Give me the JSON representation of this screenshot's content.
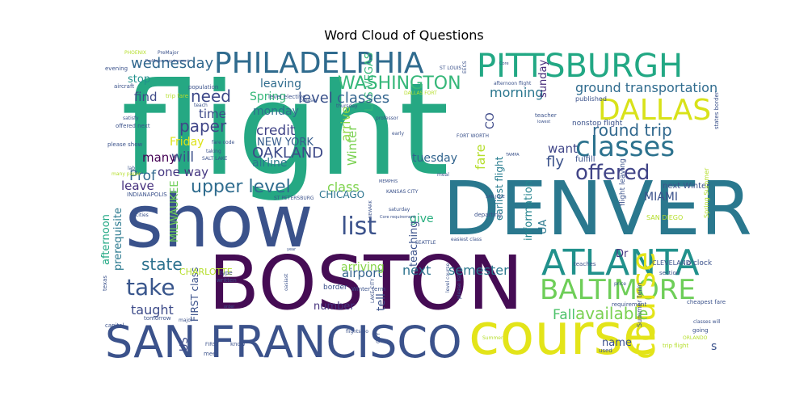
{
  "title": "Word Cloud of Questions",
  "words": [
    {
      "text": "flight",
      "color": "#25a883"
    },
    {
      "text": "BOSTON",
      "color": "#450c54"
    },
    {
      "text": "DENVER",
      "color": "#2a788e"
    },
    {
      "text": "show",
      "color": "#3a528b"
    },
    {
      "text": "course",
      "color": "#e3e419"
    },
    {
      "text": "SAN FRANCISCO",
      "color": "#3b528b"
    },
    {
      "text": "PITTSBURGH",
      "color": "#22a884"
    },
    {
      "text": "PHILADELPHIA",
      "color": "#2f6b8e"
    },
    {
      "text": "ATLANTA",
      "color": "#21918c"
    },
    {
      "text": "BALTIMORE",
      "color": "#6ece58"
    },
    {
      "text": "DALLAS",
      "color": "#d8e219"
    },
    {
      "text": "classes",
      "color": "#2c728e"
    },
    {
      "text": "offered",
      "color": "#414487"
    },
    {
      "text": "WASHINGTON",
      "color": "#35b779"
    },
    {
      "text": "take",
      "color": "#39568c"
    },
    {
      "text": "list",
      "color": "#3b528b"
    },
    {
      "text": "upper level",
      "color": "#2f6c8e"
    },
    {
      "text": "course",
      "color": "#e3e419"
    },
    {
      "text": "round trip",
      "color": "#31688e"
    },
    {
      "text": "paper",
      "color": "#404688"
    },
    {
      "text": "need",
      "color": "#3e4989"
    },
    {
      "text": "available",
      "color": "#7ad151"
    },
    {
      "text": "state",
      "color": "#2c718e"
    },
    {
      "text": "OAKLAND",
      "color": "#3e4a89"
    },
    {
      "text": "credit",
      "color": "#404387"
    },
    {
      "text": "wednesday",
      "color": "#31688e"
    },
    {
      "text": "ground transportation",
      "color": "#2f6b8e"
    },
    {
      "text": "morning",
      "color": "#2a768e"
    },
    {
      "text": "semester",
      "color": "#2a788e"
    },
    {
      "text": "taught",
      "color": "#3e4c8a"
    },
    {
      "text": "airport",
      "color": "#33638d"
    },
    {
      "text": "fly",
      "color": "#3b528b"
    },
    {
      "text": "MIAMI",
      "color": "#3b528b"
    },
    {
      "text": "Prof",
      "color": "#31688e"
    },
    {
      "text": "will",
      "color": "#3c4f8a"
    },
    {
      "text": "class",
      "color": "#7fd34e"
    },
    {
      "text": "one way",
      "color": "#453781"
    },
    {
      "text": "next",
      "color": "#2c728e"
    },
    {
      "text": "leave",
      "color": "#46307e"
    },
    {
      "text": "Fall",
      "color": "#4ec36b"
    },
    {
      "text": "CHICAGO",
      "color": "#2b748e"
    },
    {
      "text": "arriving",
      "color": "#86d549"
    },
    {
      "text": "tuesday",
      "color": "#32648e"
    },
    {
      "text": "NEW YORK",
      "color": "#365c8d"
    },
    {
      "text": "LAS VEGAS",
      "color": "#35b779"
    },
    {
      "text": "level",
      "color": "#3b528b"
    },
    {
      "text": "classes",
      "color": "#32648e"
    },
    {
      "text": "time",
      "color": "#3e4a89"
    },
    {
      "text": "monday",
      "color": "#2e6e8e"
    },
    {
      "text": "many",
      "color": "#440154"
    },
    {
      "text": "Spring",
      "color": "#35b779"
    },
    {
      "text": "leaving",
      "color": "#2f6c8e"
    },
    {
      "text": "airline",
      "color": "#2a788e"
    },
    {
      "text": "Friday",
      "color": "#dde318"
    },
    {
      "text": "find",
      "color": "#3e4a89"
    },
    {
      "text": "stop",
      "color": "#21918c"
    },
    {
      "text": "want",
      "color": "#404688"
    },
    {
      "text": "give",
      "color": "#29af7f"
    },
    {
      "text": "number",
      "color": "#46337e"
    },
    {
      "text": "name",
      "color": "#3c508b"
    },
    {
      "text": "teaching",
      "color": "#3b528b"
    },
    {
      "text": "tell",
      "color": "#3b528b"
    },
    {
      "text": "arrive",
      "color": "#8fd744"
    },
    {
      "text": "Winter",
      "color": "#7ad151"
    },
    {
      "text": "earliest flight",
      "color": "#287c8e"
    },
    {
      "text": "information",
      "color": "#25848e"
    },
    {
      "text": "fare",
      "color": "#b5de2b"
    },
    {
      "text": "sunday",
      "color": "#472c7a"
    },
    {
      "text": "CO",
      "color": "#3e4a89"
    },
    {
      "text": "prerequisite",
      "color": "#2a788e"
    },
    {
      "text": "afternoon",
      "color": "#22a884"
    },
    {
      "text": "MILWAUKEE",
      "color": "#6ece58"
    },
    {
      "text": "FIRST class",
      "color": "#3b528b"
    },
    {
      "text": "US",
      "color": "#3e4c8a"
    },
    {
      "text": "Dr",
      "color": "#453882"
    },
    {
      "text": "UA",
      "color": "#2a788e"
    },
    {
      "text": "s",
      "color": "#3b528b"
    },
    {
      "text": "CHARLOTTE",
      "color": "#b5de2b"
    },
    {
      "text": "fulfill",
      "color": "#3b528b"
    },
    {
      "text": "published",
      "color": "#3b528b"
    },
    {
      "text": "nonstop flight",
      "color": "#3b528b"
    },
    {
      "text": "next Winter",
      "color": "#3b528b"
    },
    {
      "text": "teacher",
      "color": "#3b528b"
    },
    {
      "text": "SAN DIEGO",
      "color": "#b5de2b"
    },
    {
      "text": "flight leaving",
      "color": "#3b528b"
    },
    {
      "text": "CLEVELAND",
      "color": "#3b528b"
    },
    {
      "text": "o'clock",
      "color": "#3b528b"
    },
    {
      "text": "section",
      "color": "#3b528b"
    },
    {
      "text": "teaches",
      "color": "#3b528b"
    },
    {
      "text": "Summer term",
      "color": "#3b528b"
    },
    {
      "text": "states border",
      "color": "#3b528b"
    },
    {
      "text": "Spring Summer",
      "color": "#b5de2b"
    },
    {
      "text": "classes will",
      "color": "#3b528b"
    },
    {
      "text": "going",
      "color": "#3b528b"
    },
    {
      "text": "cheapest fare",
      "color": "#3b528b"
    },
    {
      "text": "trip flight",
      "color": "#b5de2b"
    },
    {
      "text": "used",
      "color": "#3b528b"
    },
    {
      "text": "requirement",
      "color": "#3b528b"
    },
    {
      "text": "price",
      "color": "#3b528b"
    },
    {
      "text": "PHOENIX",
      "color": "#b5de2b"
    },
    {
      "text": "PreMajor",
      "color": "#3b528b"
    },
    {
      "text": "PreMajor requirement",
      "color": "#3b528b"
    },
    {
      "text": "evening",
      "color": "#3b528b"
    },
    {
      "text": "aircraft",
      "color": "#3b528b"
    },
    {
      "text": "trip fare",
      "color": "#b5de2b"
    },
    {
      "text": "population",
      "color": "#3b528b"
    },
    {
      "text": "teach",
      "color": "#3b528b"
    },
    {
      "text": "satisfy",
      "color": "#3b528b"
    },
    {
      "text": "offered next",
      "color": "#3b528b"
    },
    {
      "text": "please show",
      "color": "#3b528b"
    },
    {
      "text": "fare code",
      "color": "#3b528b"
    },
    {
      "text": "taking",
      "color": "#3b528b"
    },
    {
      "text": "SALT LAKE",
      "color": "#3b528b"
    },
    {
      "text": "lab",
      "color": "#3b528b"
    },
    {
      "text": "many paper",
      "color": "#b5de2b"
    },
    {
      "text": "INDIANAPOLIS",
      "color": "#3b528b"
    },
    {
      "text": "ST PETERSBURG",
      "color": "#3b528b"
    },
    {
      "text": "KANSAS CITY",
      "color": "#3b528b"
    },
    {
      "text": "saturday",
      "color": "#3b528b"
    },
    {
      "text": "MEMPHIS",
      "color": "#3b528b"
    },
    {
      "text": "meal",
      "color": "#3b528b"
    },
    {
      "text": "early",
      "color": "#3b528b"
    },
    {
      "text": "professor",
      "color": "#3b528b"
    },
    {
      "text": "thursday",
      "color": "#3b528b"
    },
    {
      "text": "please",
      "color": "#3b528b"
    },
    {
      "text": "level elective",
      "color": "#3b528b"
    },
    {
      "text": "ST LOUIS",
      "color": "#3b528b"
    },
    {
      "text": "DALLAS FORT",
      "color": "#b5de2b"
    },
    {
      "text": "FORT WORTH",
      "color": "#3b528b"
    },
    {
      "text": "EECS",
      "color": "#3b528b"
    },
    {
      "text": "afternoon flight",
      "color": "#3b528b"
    },
    {
      "text": "Core",
      "color": "#3b528b"
    },
    {
      "text": "TAMPA",
      "color": "#3b528b"
    },
    {
      "text": "SAN JOSE",
      "color": "#3b528b"
    },
    {
      "text": "departing",
      "color": "#3b528b"
    },
    {
      "text": "easiest class",
      "color": "#3b528b"
    },
    {
      "text": "SEATTLE",
      "color": "#3b528b"
    },
    {
      "text": "Core requirement",
      "color": "#3b528b"
    },
    {
      "text": "NEWARK",
      "color": "#3b528b"
    },
    {
      "text": "border",
      "color": "#3b528b"
    },
    {
      "text": "Winter term",
      "color": "#3b528b"
    },
    {
      "text": "LAKE CITY",
      "color": "#3b528b"
    },
    {
      "text": "written",
      "color": "#3b528b"
    },
    {
      "text": "type",
      "color": "#3b528b"
    },
    {
      "text": "texas",
      "color": "#3b528b"
    },
    {
      "text": "tomorrow",
      "color": "#3b528b"
    },
    {
      "text": "capital",
      "color": "#3b528b"
    },
    {
      "text": "major",
      "color": "#3b528b"
    },
    {
      "text": "order",
      "color": "#3b528b"
    },
    {
      "text": "FIRST",
      "color": "#3b528b"
    },
    {
      "text": "know",
      "color": "#3b528b"
    },
    {
      "text": "meet",
      "color": "#3b528b"
    },
    {
      "text": "flights go",
      "color": "#3b528b"
    },
    {
      "text": "CITY",
      "color": "#3b528b"
    },
    {
      "text": "Summer",
      "color": "#b5de2b"
    },
    {
      "text": "please list",
      "color": "#3b528b"
    },
    {
      "text": "level course",
      "color": "#3b528b"
    },
    {
      "text": "oasiast",
      "color": "#3b528b"
    },
    {
      "text": "cities",
      "color": "#3b528b"
    },
    {
      "text": "year",
      "color": "#3b528b"
    },
    {
      "text": "ORLANDO",
      "color": "#b5de2b"
    },
    {
      "text": "lowest",
      "color": "#3b528b"
    }
  ]
}
